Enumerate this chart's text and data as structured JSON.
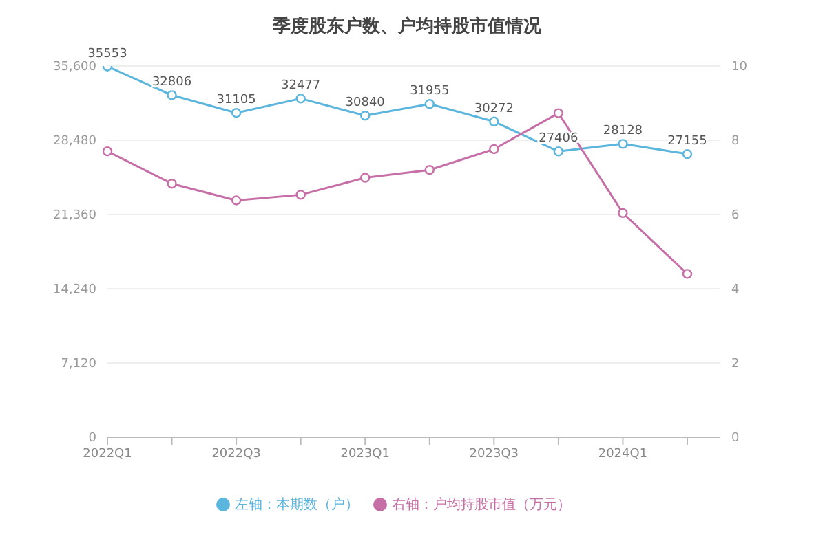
{
  "chart_data": {
    "type": "line",
    "title": "季度股东户数、户均持股市值情况",
    "categories": [
      "2022Q1",
      null,
      "2022Q3",
      null,
      "2023Q1",
      null,
      "2023Q3",
      null,
      "2024Q1",
      null
    ],
    "series": [
      {
        "name": "左轴：本期数（户）",
        "color": "#5bb5dc",
        "values": [
          35553,
          32806,
          31105,
          32477,
          30840,
          31955,
          30272,
          27406,
          28128,
          27155
        ],
        "value_labels": [
          "35553",
          "32806",
          "31105",
          "32477",
          "30840",
          "31955",
          "30272",
          "27406",
          "28128",
          "27155"
        ]
      },
      {
        "name": "右轴：户均持股市值（万元）",
        "color": "#c66fa6",
        "axis": "y2",
        "values": [
          7.7,
          6.83,
          6.38,
          6.53,
          6.99,
          7.2,
          7.76,
          8.73,
          6.04,
          4.4
        ]
      }
    ],
    "ylim": [
      0,
      35600
    ],
    "yticks": [
      0,
      {
        "value": 7120,
        "label": "7,120"
      },
      {
        "value": 14240,
        "label": "14,240"
      },
      {
        "value": 21360,
        "label": "21,360"
      },
      {
        "value": 28480,
        "label": "28,480"
      },
      {
        "value": 35600,
        "label": "35,600"
      }
    ],
    "y2lim": [
      0,
      10
    ],
    "y2ticks": [
      0,
      2,
      4,
      6,
      8,
      10
    ],
    "grid": "y",
    "legend": "bottom",
    "marker": "circle",
    "line_style": "solid"
  }
}
